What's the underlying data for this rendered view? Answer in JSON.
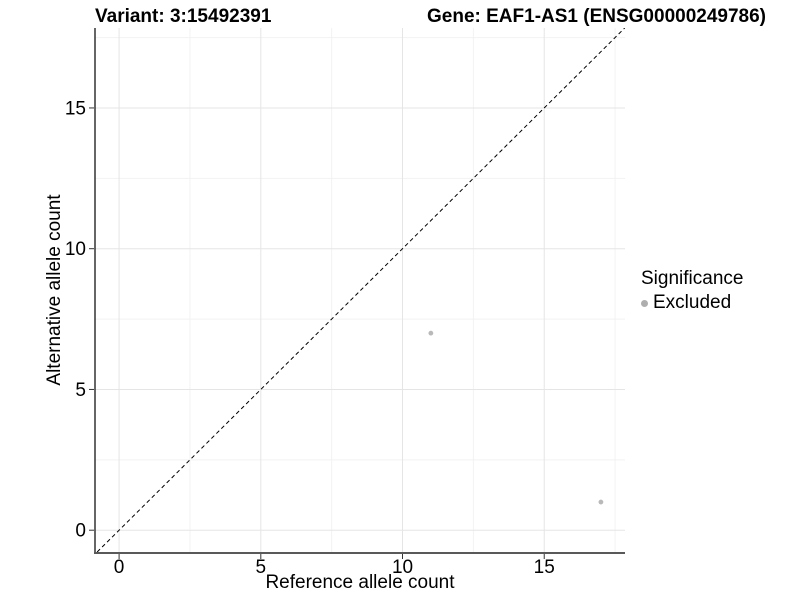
{
  "header": {
    "title_left": "Variant: 3:15492391",
    "title_right": "Gene: EAF1-AS1 (ENSG00000249786)"
  },
  "legend": {
    "title": "Significance",
    "items": [
      {
        "label": "Excluded",
        "color": "#aeaeae",
        "marker": "circle"
      }
    ]
  },
  "chart_data": {
    "type": "scatter",
    "xlabel": "Reference allele count",
    "ylabel": "Alternative allele count",
    "x_ticks": [
      0,
      5,
      10,
      15
    ],
    "y_ticks": [
      0,
      5,
      10,
      15
    ],
    "x_minor_ticks": [
      2.5,
      7.5,
      12.5,
      17.5
    ],
    "y_minor_ticks": [
      2.5,
      7.5,
      12.5,
      17.5
    ],
    "xlim": [
      -0.85,
      17.85
    ],
    "ylim": [
      -0.81,
      17.84
    ],
    "grid": true,
    "legend_position": "right-center",
    "series": [
      {
        "name": "Excluded",
        "color": "#b9b9b9",
        "points": [
          {
            "x": 11,
            "y": 7
          },
          {
            "x": 17,
            "y": 1
          }
        ]
      }
    ],
    "identity_line": {
      "slope": 1,
      "intercept": 0,
      "style": "dashed",
      "color": "#000000"
    }
  },
  "colors": {
    "background": "#ffffff",
    "grid_major": "#e5e5e5",
    "grid_minor": "#f2f2f2",
    "y_axis_line": "#000000",
    "x_axis_line": "#595959",
    "tick_mark": "#333333",
    "text": "#000000"
  }
}
